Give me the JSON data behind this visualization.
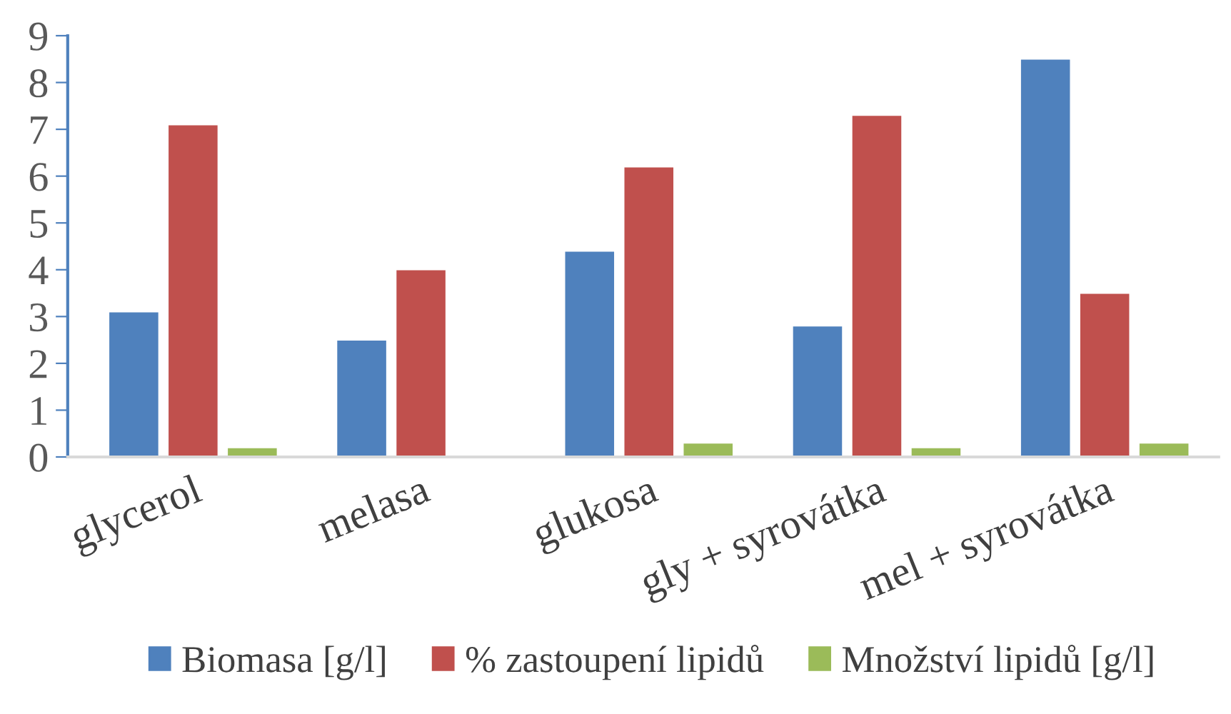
{
  "chart_data": {
    "type": "bar",
    "categories": [
      "glycerol",
      "melasa",
      "glukosa",
      "gly + syrovátka",
      "mel + syrovátka"
    ],
    "series": [
      {
        "name": "Biomasa [g/l]",
        "color": "#4f81bd",
        "values": [
          3.1,
          2.5,
          4.4,
          2.8,
          8.5
        ]
      },
      {
        "name": "% zastoupení lipidů",
        "color": "#c0504d",
        "values": [
          7.1,
          4.0,
          6.2,
          7.3,
          3.5
        ]
      },
      {
        "name": "Množství lipidů [g/l]",
        "color": "#9bbb59",
        "values": [
          0.2,
          null,
          0.3,
          0.2,
          0.3
        ]
      }
    ],
    "ylim": [
      0,
      9
    ],
    "yticks": [
      0,
      1,
      2,
      3,
      4,
      5,
      6,
      7,
      8,
      9
    ],
    "grid": false,
    "legend": "bottom"
  }
}
